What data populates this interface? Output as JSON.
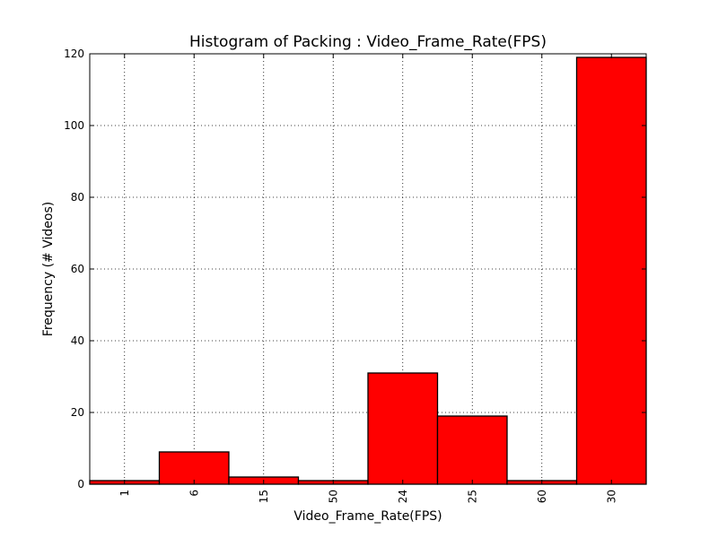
{
  "chart_data": {
    "type": "bar",
    "title": "Histogram of Packing : Video_Frame_Rate(FPS)",
    "xlabel": "Video_Frame_Rate(FPS)",
    "ylabel": "Frequency (# Videos)",
    "categories": [
      "1",
      "6",
      "15",
      "50",
      "24",
      "25",
      "60",
      "30"
    ],
    "values": [
      1,
      9,
      2,
      1,
      31,
      19,
      1,
      119
    ],
    "ylim": [
      0,
      120
    ],
    "yticks": [
      "0",
      "20",
      "40",
      "60",
      "80",
      "100",
      "120"
    ],
    "grid": true,
    "bar_color": "#ff0000",
    "edge_color": "#000000"
  }
}
